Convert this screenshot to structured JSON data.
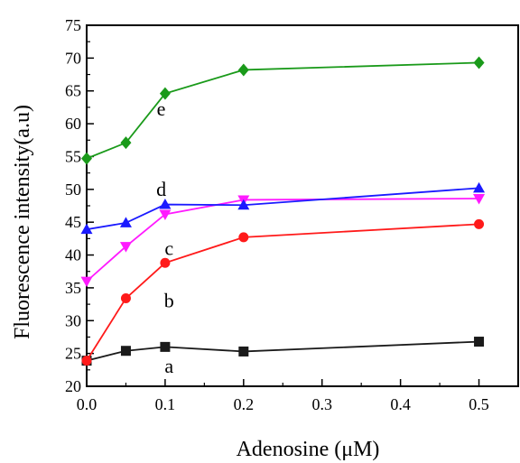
{
  "chart_data": {
    "type": "line",
    "title": "",
    "xlabel": "Adenosine (μM)",
    "ylabel": "Fluorescence intensity(a.u)",
    "xlim": [
      0.0,
      0.55
    ],
    "ylim": [
      20,
      75
    ],
    "x_ticks": [
      "0.0",
      "0.1",
      "0.2",
      "0.3",
      "0.4",
      "0.5"
    ],
    "y_ticks": [
      "20",
      "25",
      "30",
      "35",
      "40",
      "45",
      "50",
      "55",
      "60",
      "65",
      "70",
      "75"
    ],
    "grid": false,
    "x": [
      0.0,
      0.05,
      0.1,
      0.2,
      0.5
    ],
    "series": [
      {
        "name": "a",
        "color": "#1a1a1a",
        "marker": "square",
        "values": [
          23.9,
          25.4,
          26.0,
          25.3,
          26.8
        ],
        "label_pos": [
          0.105,
          23.0
        ]
      },
      {
        "name": "b",
        "color": "#ff1a1a",
        "marker": "circle",
        "values": [
          23.9,
          33.4,
          38.8,
          42.7,
          44.7
        ],
        "label_pos": [
          0.105,
          33.0
        ]
      },
      {
        "name": "c",
        "color": "#ff1aff",
        "marker": "triangle-down",
        "values": [
          36.0,
          41.3,
          46.2,
          48.4,
          48.6
        ],
        "label_pos": [
          0.105,
          41.0
        ]
      },
      {
        "name": "d",
        "color": "#1a1aff",
        "marker": "triangle-up",
        "values": [
          43.9,
          44.9,
          47.7,
          47.6,
          50.2
        ],
        "label_pos": [
          0.095,
          50.0
        ]
      },
      {
        "name": "e",
        "color": "#1a9a1a",
        "marker": "diamond",
        "values": [
          54.7,
          57.1,
          64.6,
          68.2,
          69.3
        ],
        "label_pos": [
          0.095,
          62.2
        ]
      }
    ]
  }
}
